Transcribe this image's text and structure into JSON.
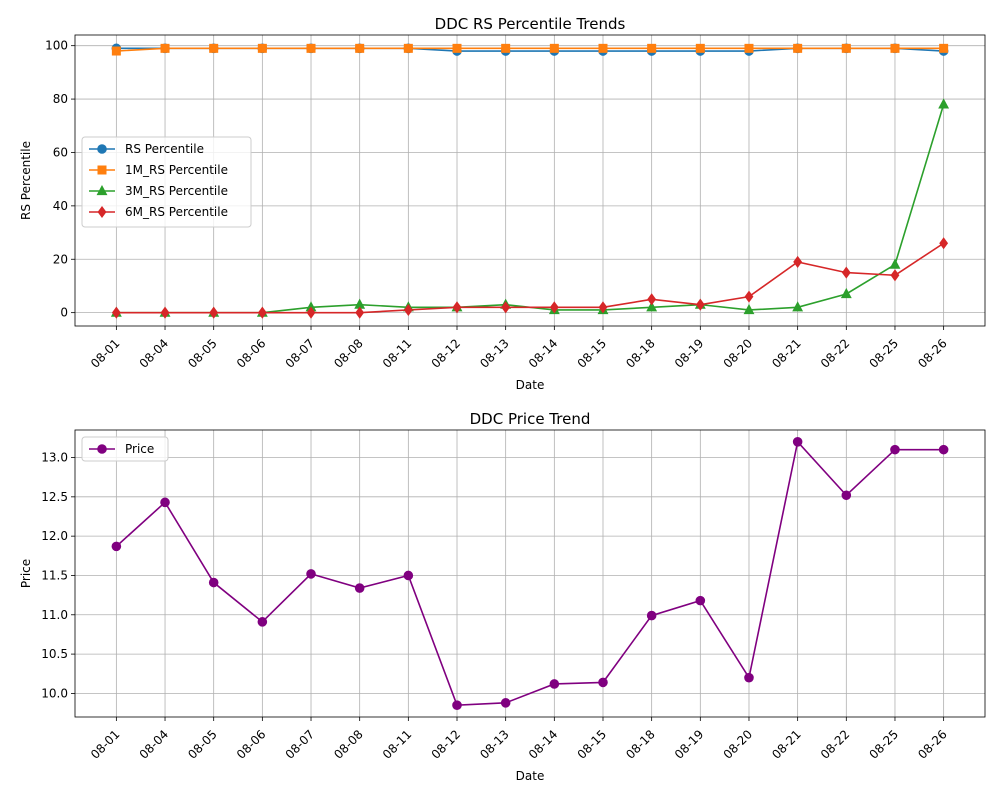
{
  "chart_data": [
    {
      "type": "line",
      "title": "DDC RS Percentile Trends",
      "xlabel": "Date",
      "ylabel": "RS Percentile",
      "categories": [
        "08-01",
        "08-04",
        "08-05",
        "08-06",
        "08-07",
        "08-08",
        "08-11",
        "08-12",
        "08-13",
        "08-14",
        "08-15",
        "08-18",
        "08-19",
        "08-20",
        "08-21",
        "08-22",
        "08-25",
        "08-26"
      ],
      "ylim": [
        -5,
        104
      ],
      "yticks": [
        0,
        20,
        40,
        60,
        80,
        100
      ],
      "grid": true,
      "legend_position": "center-left",
      "series": [
        {
          "name": "RS Percentile",
          "color": "#1f77b4",
          "marker": "circle",
          "values": [
            99,
            99,
            99,
            99,
            99,
            99,
            99,
            98,
            98,
            98,
            98,
            98,
            98,
            98,
            99,
            99,
            99,
            98
          ]
        },
        {
          "name": "1M_RS Percentile",
          "color": "#ff7f0e",
          "marker": "square",
          "values": [
            98,
            99,
            99,
            99,
            99,
            99,
            99,
            99,
            99,
            99,
            99,
            99,
            99,
            99,
            99,
            99,
            99,
            99
          ]
        },
        {
          "name": "3M_RS Percentile",
          "color": "#2ca02c",
          "marker": "triangle",
          "values": [
            0,
            0,
            0,
            0,
            2,
            3,
            2,
            2,
            3,
            1,
            1,
            2,
            3,
            1,
            2,
            7,
            18,
            78
          ]
        },
        {
          "name": "6M_RS Percentile",
          "color": "#d62728",
          "marker": "diamond",
          "values": [
            0,
            0,
            0,
            0,
            0,
            0,
            1,
            2,
            2,
            2,
            2,
            5,
            3,
            6,
            19,
            15,
            14,
            26
          ]
        }
      ]
    },
    {
      "type": "line",
      "title": "DDC Price Trend",
      "xlabel": "Date",
      "ylabel": "Price",
      "categories": [
        "08-01",
        "08-04",
        "08-05",
        "08-06",
        "08-07",
        "08-08",
        "08-11",
        "08-12",
        "08-13",
        "08-14",
        "08-15",
        "08-18",
        "08-19",
        "08-20",
        "08-21",
        "08-22",
        "08-25",
        "08-26"
      ],
      "ylim": [
        9.7,
        13.35
      ],
      "yticks": [
        10.0,
        10.5,
        11.0,
        11.5,
        12.0,
        12.5,
        13.0
      ],
      "ytick_labels": [
        "10.0",
        "10.5",
        "11.0",
        "11.5",
        "12.0",
        "12.5",
        "13.0"
      ],
      "grid": true,
      "legend_position": "top-left",
      "series": [
        {
          "name": "Price",
          "color": "#800080",
          "marker": "circle",
          "values": [
            11.87,
            12.43,
            11.41,
            10.91,
            11.52,
            11.34,
            11.5,
            9.85,
            9.88,
            10.12,
            10.14,
            10.99,
            11.18,
            10.2,
            13.2,
            12.52,
            13.1,
            13.1
          ]
        }
      ]
    }
  ]
}
